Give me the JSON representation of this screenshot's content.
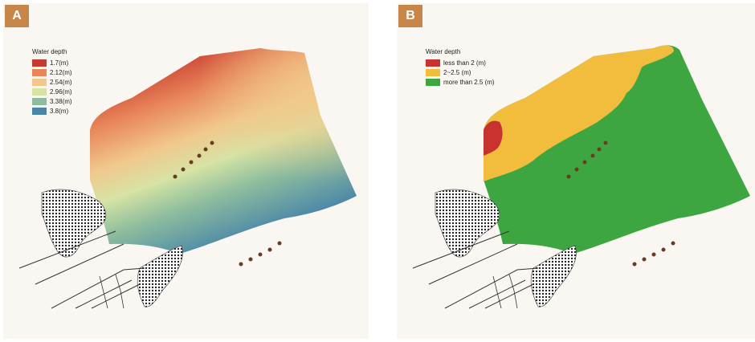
{
  "panels": [
    {
      "label": "A",
      "legend": {
        "title": "Water depth",
        "items": [
          {
            "label": "1.7(m)",
            "color": "#c83a2f"
          },
          {
            "label": "2.12(m)",
            "color": "#e8865a"
          },
          {
            "label": "2.54(m)",
            "color": "#f1c78c"
          },
          {
            "label": "2.96(m)",
            "color": "#d6e3a4"
          },
          {
            "label": "3.38(m)",
            "color": "#8dbd9e"
          },
          {
            "label": "3.8(m)",
            "color": "#4a86a8"
          }
        ]
      }
    },
    {
      "label": "B",
      "legend": {
        "title": "Water depth",
        "items": [
          {
            "label": "less than 2 (m)",
            "color": "#c8322f"
          },
          {
            "label": "2~2.5 (m)",
            "color": "#f2bd3c"
          },
          {
            "label": "more than 2.5 (m)",
            "color": "#3da640"
          }
        ]
      }
    }
  ]
}
